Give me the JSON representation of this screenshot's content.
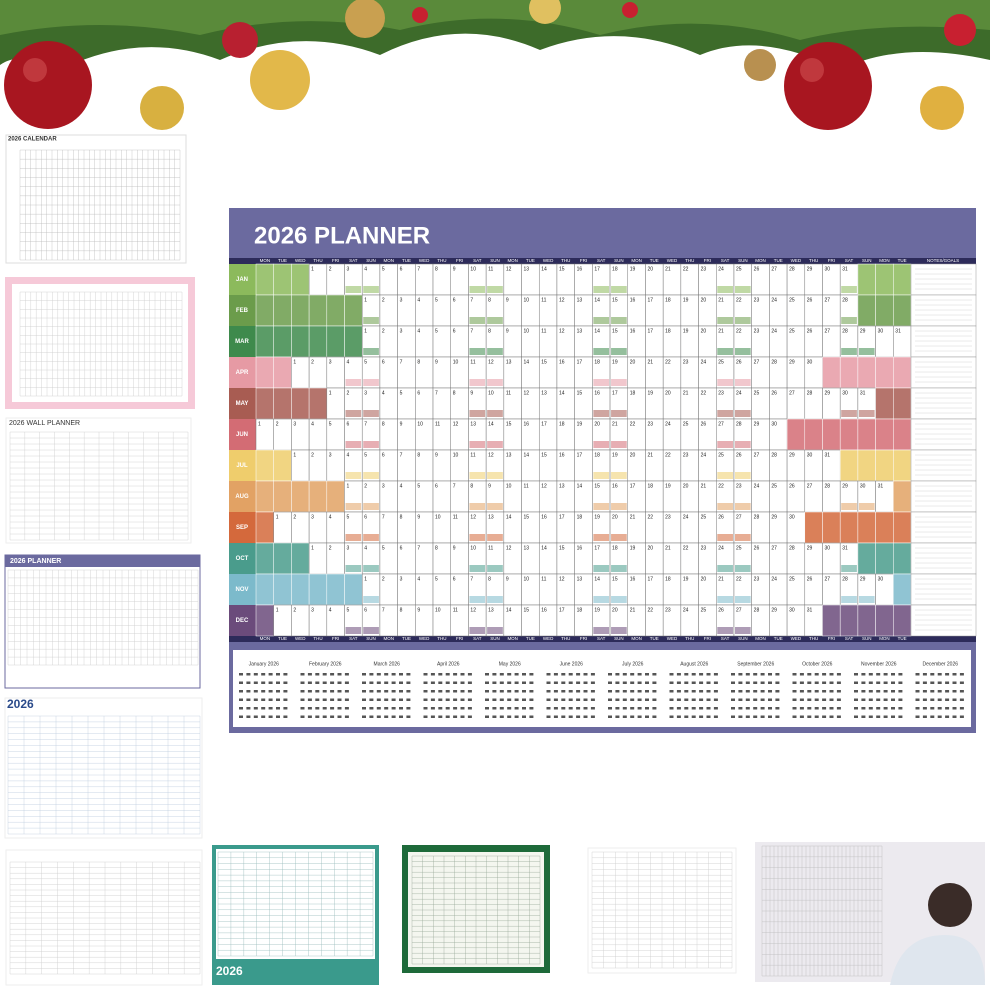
{
  "planner": {
    "title": "2026 PLANNER",
    "notes_label": "NOTES/GOALS",
    "weekdays": [
      "MON",
      "TUE",
      "WED",
      "THU",
      "FRI",
      "SAT",
      "SUN"
    ],
    "months": [
      {
        "label": "JAN",
        "color": "#8cba5c",
        "days": [
          null,
          null,
          null,
          1,
          2,
          3,
          4,
          5,
          6,
          7,
          8,
          9,
          10,
          11,
          12,
          13,
          14,
          15,
          16,
          17,
          18,
          19,
          20,
          21,
          22,
          23,
          24,
          25,
          26,
          27,
          28,
          29,
          30,
          31,
          null,
          null,
          null
        ]
      },
      {
        "label": "FEB",
        "color": "#6b9c4b",
        "days": [
          null,
          null,
          null,
          null,
          null,
          null,
          1,
          2,
          3,
          4,
          5,
          6,
          7,
          8,
          9,
          10,
          11,
          12,
          13,
          14,
          15,
          16,
          17,
          18,
          19,
          20,
          21,
          22,
          23,
          24,
          25,
          26,
          27,
          28,
          null,
          null,
          null
        ]
      },
      {
        "label": "MAR",
        "color": "#3e8a4c",
        "days": [
          null,
          null,
          null,
          null,
          null,
          null,
          1,
          2,
          3,
          4,
          5,
          6,
          7,
          8,
          9,
          10,
          11,
          12,
          13,
          14,
          15,
          16,
          17,
          18,
          19,
          20,
          21,
          22,
          23,
          24,
          25,
          26,
          27,
          28,
          29,
          30,
          31
        ]
      },
      {
        "label": "APR",
        "color": "#e69aa4",
        "days": [
          null,
          null,
          1,
          2,
          3,
          4,
          5,
          6,
          7,
          8,
          9,
          10,
          11,
          12,
          13,
          14,
          15,
          16,
          17,
          18,
          19,
          20,
          21,
          22,
          23,
          24,
          25,
          26,
          27,
          28,
          29,
          30,
          null,
          null,
          null,
          null,
          null
        ]
      },
      {
        "label": "MAY",
        "color": "#a85c52",
        "days": [
          null,
          null,
          null,
          null,
          1,
          2,
          3,
          4,
          5,
          6,
          7,
          8,
          9,
          10,
          11,
          12,
          13,
          14,
          15,
          16,
          17,
          18,
          19,
          20,
          21,
          22,
          23,
          24,
          25,
          26,
          27,
          28,
          29,
          30,
          31,
          null,
          null
        ]
      },
      {
        "label": "JUN",
        "color": "#d36c74",
        "days": [
          1,
          2,
          3,
          4,
          5,
          6,
          7,
          8,
          9,
          10,
          11,
          12,
          13,
          14,
          15,
          16,
          17,
          18,
          19,
          20,
          21,
          22,
          23,
          24,
          25,
          26,
          27,
          28,
          29,
          30,
          null,
          null,
          null,
          null,
          null,
          null,
          null
        ]
      },
      {
        "label": "JUL",
        "color": "#efcd6c",
        "days": [
          null,
          null,
          1,
          2,
          3,
          4,
          5,
          6,
          7,
          8,
          9,
          10,
          11,
          12,
          13,
          14,
          15,
          16,
          17,
          18,
          19,
          20,
          21,
          22,
          23,
          24,
          25,
          26,
          27,
          28,
          29,
          30,
          31,
          null,
          null,
          null,
          null
        ]
      },
      {
        "label": "AUG",
        "color": "#e2a264",
        "days": [
          null,
          null,
          null,
          null,
          null,
          1,
          2,
          3,
          4,
          5,
          6,
          7,
          8,
          9,
          10,
          11,
          12,
          13,
          14,
          15,
          16,
          17,
          18,
          19,
          20,
          21,
          22,
          23,
          24,
          25,
          26,
          27,
          28,
          29,
          30,
          31,
          null
        ]
      },
      {
        "label": "SEP",
        "color": "#d4693c",
        "days": [
          null,
          1,
          2,
          3,
          4,
          5,
          6,
          7,
          8,
          9,
          10,
          11,
          12,
          13,
          14,
          15,
          16,
          17,
          18,
          19,
          20,
          21,
          22,
          23,
          24,
          25,
          26,
          27,
          28,
          29,
          30,
          null,
          null,
          null,
          null,
          null,
          null
        ]
      },
      {
        "label": "OCT",
        "color": "#4a9c8c",
        "days": [
          null,
          null,
          null,
          1,
          2,
          3,
          4,
          5,
          6,
          7,
          8,
          9,
          10,
          11,
          12,
          13,
          14,
          15,
          16,
          17,
          18,
          19,
          20,
          21,
          22,
          23,
          24,
          25,
          26,
          27,
          28,
          29,
          30,
          31,
          null,
          null,
          null
        ]
      },
      {
        "label": "NOV",
        "color": "#7cbacb",
        "days": [
          null,
          null,
          null,
          null,
          null,
          null,
          1,
          2,
          3,
          4,
          5,
          6,
          7,
          8,
          9,
          10,
          11,
          12,
          13,
          14,
          15,
          16,
          17,
          18,
          19,
          20,
          21,
          22,
          23,
          24,
          25,
          26,
          27,
          28,
          29,
          30,
          null
        ]
      },
      {
        "label": "DEC",
        "color": "#6b4b7b",
        "days": [
          null,
          1,
          2,
          3,
          4,
          5,
          6,
          7,
          8,
          9,
          10,
          11,
          12,
          13,
          14,
          15,
          16,
          17,
          18,
          19,
          20,
          21,
          22,
          23,
          24,
          25,
          26,
          27,
          28,
          29,
          30,
          31,
          null,
          null,
          null,
          null,
          null
        ]
      }
    ],
    "calendar_titles": [
      "January 2026",
      "February 2026",
      "March 2026",
      "April 2026",
      "May 2026",
      "June 2026",
      "July 2026",
      "August 2026",
      "September 2026",
      "October 2026",
      "November 2026",
      "December 2026"
    ]
  },
  "thumbnails": {
    "calendar": "2026 CALENDAR",
    "wall_planner": "2026 WALL PLANNER",
    "planner": "2026 PLANNER",
    "year": "2026"
  }
}
